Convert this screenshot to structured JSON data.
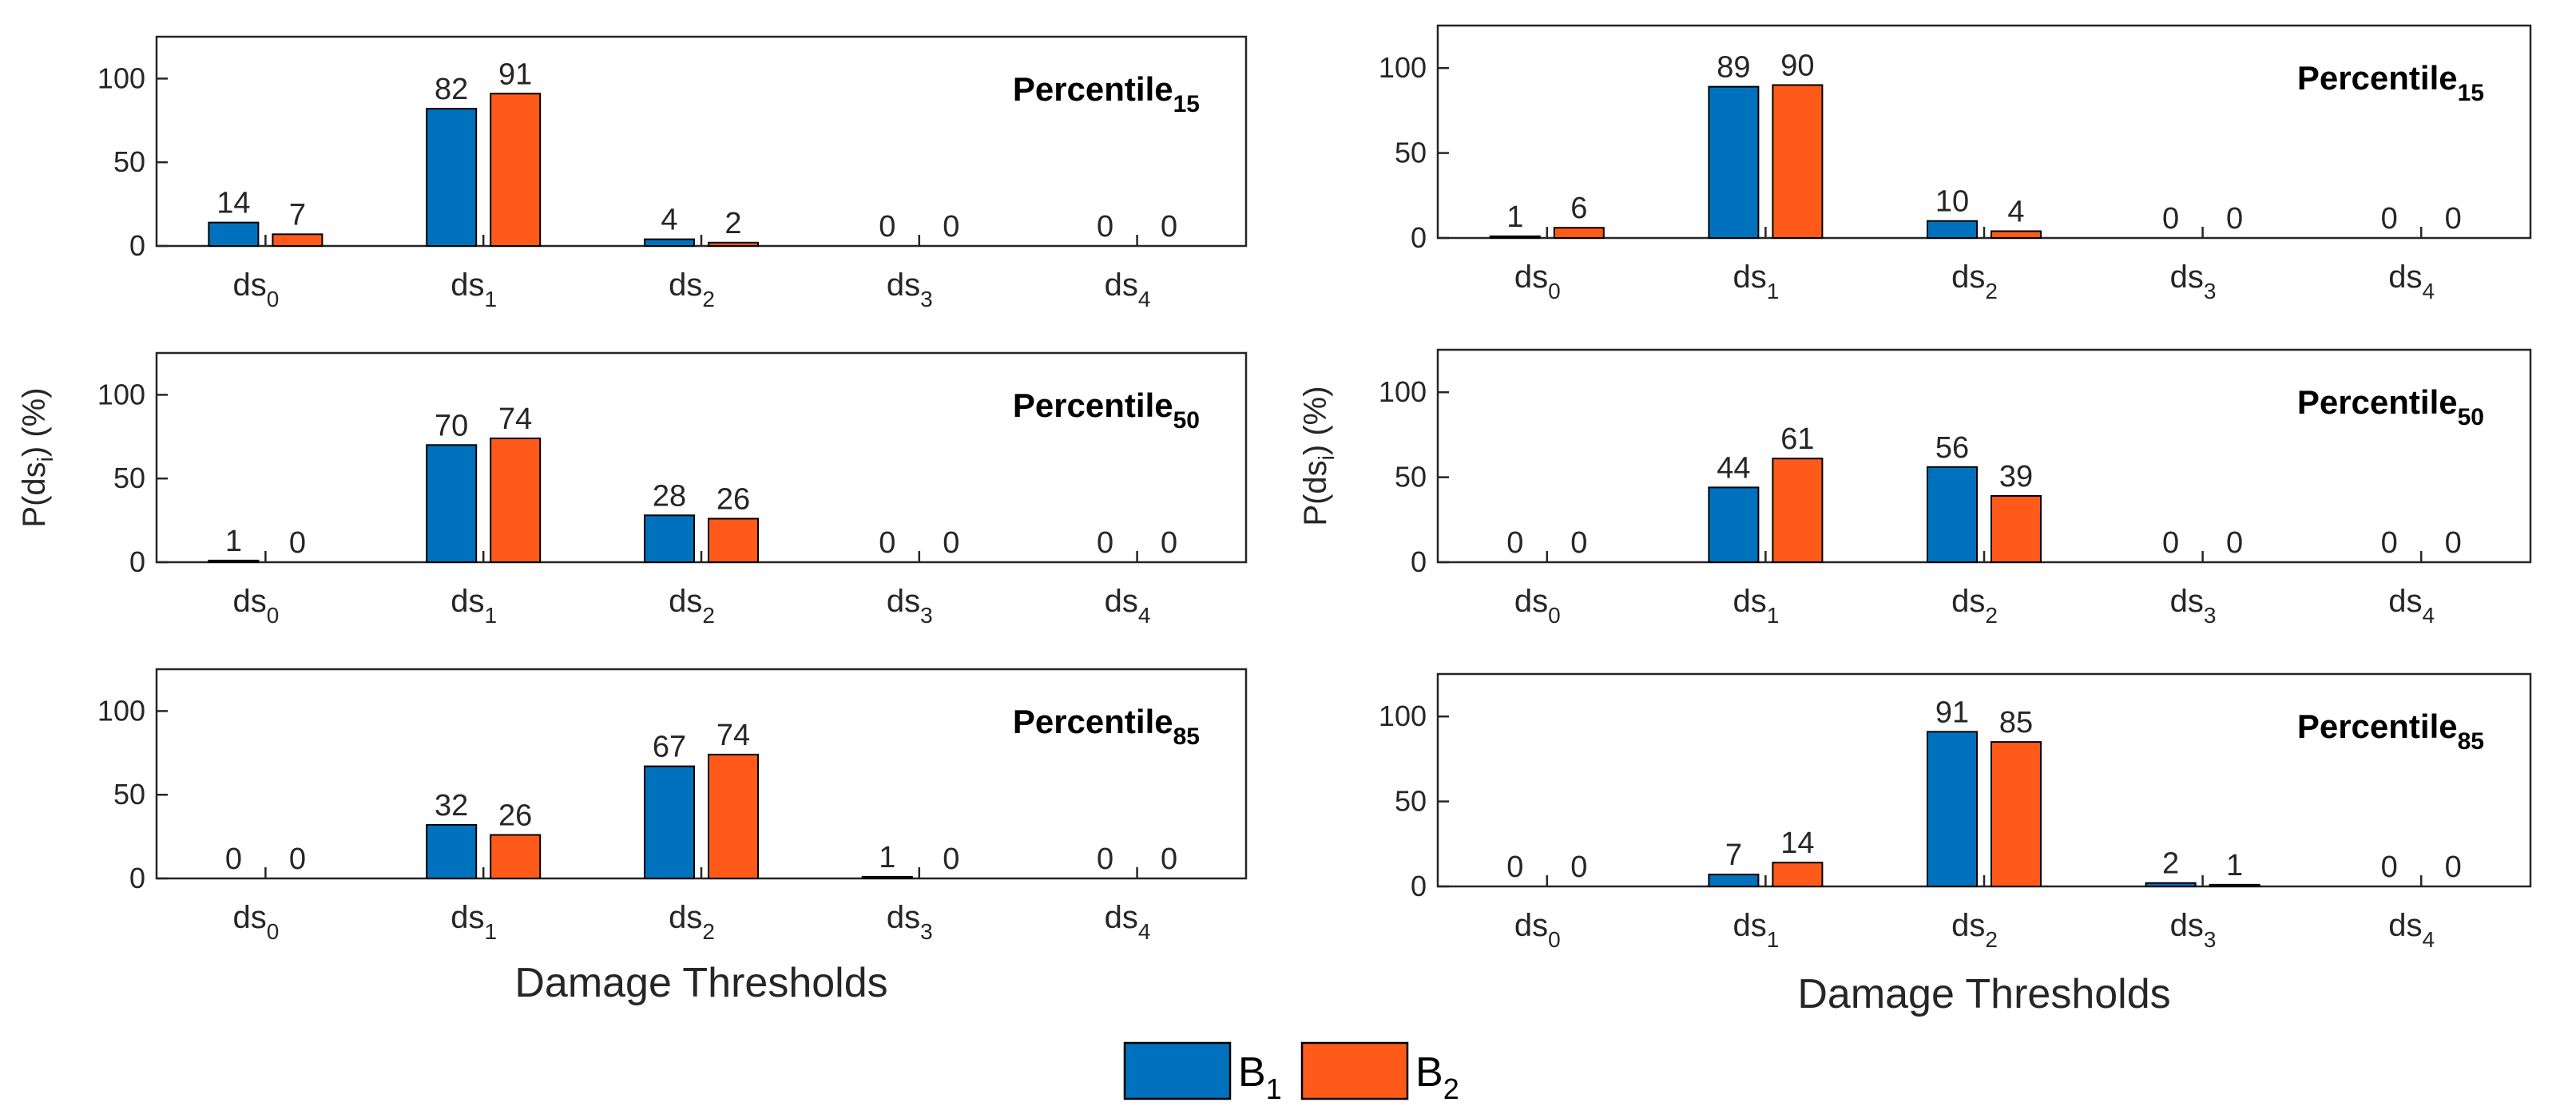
{
  "chart_data": {
    "type": "bar",
    "ylim": [
      0,
      125
    ],
    "yticks": [
      0,
      50,
      100
    ],
    "categories": [
      {
        "base": "ds",
        "sub": "0"
      },
      {
        "base": "ds",
        "sub": "1"
      },
      {
        "base": "ds",
        "sub": "2"
      },
      {
        "base": "ds",
        "sub": "3"
      },
      {
        "base": "ds",
        "sub": "4"
      }
    ],
    "legend": {
      "position": "bottom-center",
      "entries": [
        {
          "base": "B",
          "sub": "1",
          "color": "#0072BD"
        },
        {
          "base": "B",
          "sub": "2",
          "color": "#FF5A1A"
        }
      ]
    },
    "columns": [
      {
        "xlabel": "Damage Thresholds",
        "ylabel": {
          "prefix": "P(ds",
          "sub": "i",
          "suffix": ") (%)"
        },
        "panels": [
          {
            "title": {
              "base": "Percentile",
              "sub": "15"
            },
            "series": [
              {
                "name": "B1",
                "values": [
                  14,
                  82,
                  4,
                  0,
                  0
                ]
              },
              {
                "name": "B2",
                "values": [
                  7,
                  91,
                  2,
                  0,
                  0
                ]
              }
            ]
          },
          {
            "title": {
              "base": "Percentile",
              "sub": "50"
            },
            "series": [
              {
                "name": "B1",
                "values": [
                  1,
                  70,
                  28,
                  0,
                  0
                ]
              },
              {
                "name": "B2",
                "values": [
                  0,
                  74,
                  26,
                  0,
                  0
                ]
              }
            ]
          },
          {
            "title": {
              "base": "Percentile",
              "sub": "85"
            },
            "series": [
              {
                "name": "B1",
                "values": [
                  0,
                  32,
                  67,
                  1,
                  0
                ]
              },
              {
                "name": "B2",
                "values": [
                  0,
                  26,
                  74,
                  0,
                  0
                ]
              }
            ]
          }
        ]
      },
      {
        "xlabel": "Damage Thresholds",
        "ylabel": {
          "prefix": "P(ds",
          "sub": "i",
          "suffix": ") (%)"
        },
        "panels": [
          {
            "title": {
              "base": "Percentile",
              "sub": "15"
            },
            "series": [
              {
                "name": "B1",
                "values": [
                  1,
                  89,
                  10,
                  0,
                  0
                ]
              },
              {
                "name": "B2",
                "values": [
                  6,
                  90,
                  4,
                  0,
                  0
                ]
              }
            ]
          },
          {
            "title": {
              "base": "Percentile",
              "sub": "50"
            },
            "series": [
              {
                "name": "B1",
                "values": [
                  0,
                  44,
                  56,
                  0,
                  0
                ]
              },
              {
                "name": "B2",
                "values": [
                  0,
                  61,
                  39,
                  0,
                  0
                ]
              }
            ]
          },
          {
            "title": {
              "base": "Percentile",
              "sub": "85"
            },
            "series": [
              {
                "name": "B1",
                "values": [
                  0,
                  7,
                  91,
                  2,
                  0
                ]
              },
              {
                "name": "B2",
                "values": [
                  0,
                  14,
                  85,
                  1,
                  0
                ]
              }
            ]
          }
        ]
      }
    ]
  }
}
